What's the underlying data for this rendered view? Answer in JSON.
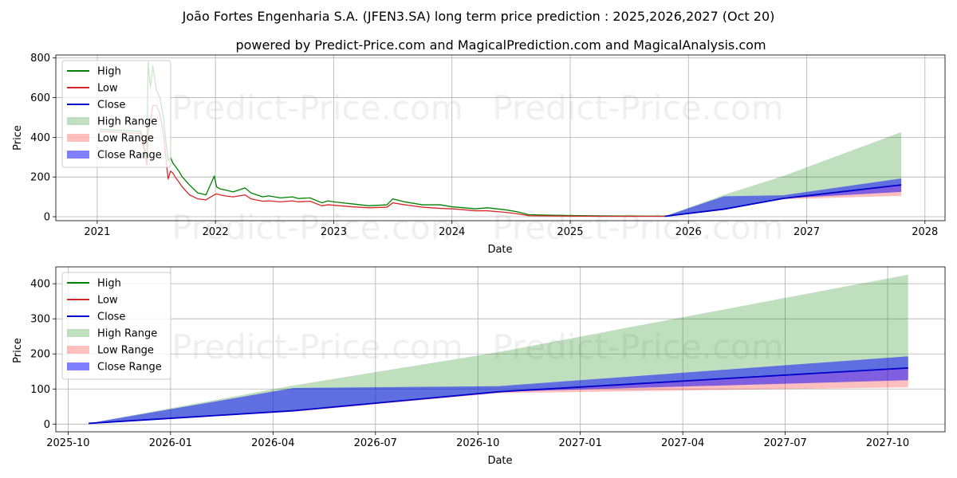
{
  "title": "João Fortes Engenharia S.A. (JFEN3.SA) long term price prediction : 2025,2026,2027 (Oct 20)",
  "subtitle": "powered by Predict-Price.com and MagicalPrediction.com and MagicalAnalysis.com",
  "watermark": "Predict-Price.com",
  "colors": {
    "high": "#008000",
    "low": "#d62728",
    "close": "#0000cc",
    "high_range": "#008000",
    "low_range": "#ff0000",
    "close_range": "#0000ff",
    "grid": "#b0b0b0"
  },
  "legend": [
    "High",
    "Low",
    "Close",
    "High Range",
    "Low Range",
    "Close Range"
  ],
  "chart_data": [
    {
      "type": "line",
      "name": "full-history",
      "xlabel": "Date",
      "ylabel": "Price",
      "xlim": [
        2020.65,
        2028.17
      ],
      "ylim": [
        -20,
        815
      ],
      "xticks": [
        2021,
        2022,
        2023,
        2024,
        2025,
        2026,
        2027,
        2028
      ],
      "xtick_labels": [
        "2021",
        "2022",
        "2023",
        "2024",
        "2025",
        "2026",
        "2027",
        "2028"
      ],
      "yticks": [
        0,
        200,
        400,
        600,
        800
      ],
      "ytick_labels": [
        "0",
        "200",
        "400",
        "600",
        "800"
      ],
      "history": {
        "x": [
          2021.02,
          2021.37,
          2021.42,
          2021.43,
          2021.45,
          2021.47,
          2021.5,
          2021.53,
          2021.56,
          2021.58,
          2021.6,
          2021.62,
          2021.64,
          2021.66,
          2021.69,
          2021.72,
          2021.78,
          2021.85,
          2021.92,
          2021.99,
          2022.01,
          2022.04,
          2022.08,
          2022.15,
          2022.25,
          2022.3,
          2022.4,
          2022.45,
          2022.55,
          2022.65,
          2022.7,
          2022.8,
          2022.9,
          2022.95,
          2023.0,
          2023.15,
          2023.3,
          2023.45,
          2023.5,
          2023.6,
          2023.75,
          2023.9,
          2024.0,
          2024.1,
          2024.2,
          2024.3,
          2024.45,
          2024.55,
          2024.65,
          2024.8,
          2025.0,
          2025.3,
          2025.6,
          2025.8
        ],
        "high": [
          440,
          430,
          290,
          780,
          650,
          760,
          640,
          600,
          500,
          380,
          280,
          300,
          270,
          255,
          230,
          200,
          160,
          120,
          110,
          205,
          150,
          140,
          135,
          125,
          145,
          120,
          100,
          105,
          95,
          100,
          92,
          95,
          70,
          80,
          75,
          65,
          55,
          60,
          90,
          75,
          60,
          60,
          50,
          45,
          40,
          45,
          35,
          25,
          10,
          8,
          6,
          4,
          3,
          3
        ],
        "low": [
          430,
          420,
          260,
          420,
          480,
          560,
          560,
          520,
          420,
          300,
          190,
          230,
          220,
          200,
          175,
          150,
          110,
          90,
          85,
          110,
          115,
          110,
          105,
          100,
          110,
          90,
          78,
          80,
          75,
          80,
          75,
          78,
          55,
          60,
          58,
          50,
          45,
          48,
          70,
          60,
          48,
          42,
          40,
          35,
          30,
          30,
          22,
          15,
          5,
          4,
          3,
          2,
          2,
          2
        ]
      },
      "forecast": {
        "x": [
          2025.8,
          2026.3,
          2026.8,
          2027.8
        ],
        "close": [
          2,
          38,
          92,
          160
        ],
        "high_upper": [
          2,
          110,
          205,
          426
        ],
        "low_lower": [
          2,
          35,
          88,
          105
        ],
        "close_upper": [
          2,
          103,
          108,
          193
        ],
        "close_lower": [
          2,
          38,
          92,
          125
        ]
      }
    },
    {
      "type": "area",
      "name": "forecast-detail",
      "xlabel": "Date",
      "ylabel": "Price",
      "xlim": [
        2025.72,
        2027.89
      ],
      "ylim": [
        -22,
        448
      ],
      "xticks": [
        2025.75,
        2026.0,
        2026.25,
        2026.5,
        2026.75,
        2027.0,
        2027.25,
        2027.5,
        2027.75
      ],
      "xtick_labels": [
        "2025-10",
        "2026-01",
        "2026-04",
        "2026-07",
        "2026-10",
        "2027-01",
        "2027-04",
        "2027-07",
        "2027-10"
      ],
      "yticks": [
        0,
        100,
        200,
        300,
        400
      ],
      "ytick_labels": [
        "0",
        "100",
        "200",
        "300",
        "400"
      ],
      "forecast": {
        "x": [
          2025.8,
          2026.3,
          2026.8,
          2027.8
        ],
        "close": [
          2,
          38,
          92,
          160
        ],
        "high_upper": [
          2,
          110,
          205,
          426
        ],
        "low_lower": [
          2,
          35,
          88,
          105
        ],
        "close_upper": [
          2,
          103,
          108,
          193
        ],
        "close_lower": [
          2,
          38,
          92,
          125
        ]
      }
    }
  ]
}
